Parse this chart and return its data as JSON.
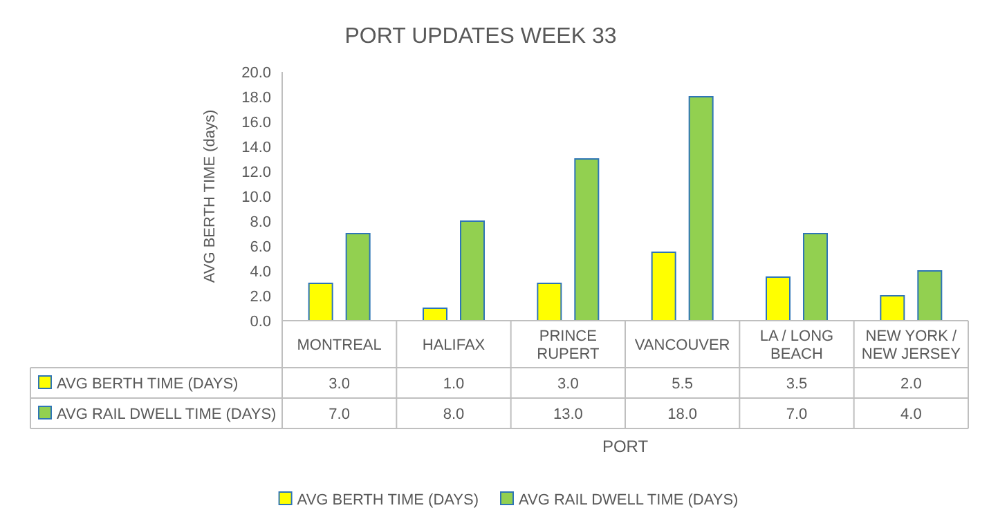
{
  "chart_data": {
    "type": "bar",
    "title": "PORT UPDATES WEEK 33",
    "xlabel": "PORT",
    "ylabel": "AVG BERTH TIME (days)",
    "categories": [
      "MONTREAL",
      "HALIFAX",
      "PRINCE RUPERT",
      "VANCOUVER",
      "LA / LONG BEACH",
      "NEW YORK / NEW JERSEY"
    ],
    "series": [
      {
        "name": "AVG BERTH TIME (DAYS)",
        "color": "#ffff00",
        "values": [
          3.0,
          1.0,
          3.0,
          5.5,
          3.5,
          2.0
        ],
        "value_labels": [
          "3.0",
          "1.0",
          "3.0",
          "5.5",
          "3.5",
          "2.0"
        ]
      },
      {
        "name": "AVG RAIL DWELL TIME (DAYS)",
        "color": "#92d050",
        "values": [
          7.0,
          8.0,
          13.0,
          18.0,
          7.0,
          4.0
        ],
        "value_labels": [
          "7.0",
          "8.0",
          "13.0",
          "18.0",
          "7.0",
          "4.0"
        ]
      }
    ],
    "ylim": [
      0,
      20
    ],
    "yticks": [
      {
        "value": 0,
        "label": "0.0"
      },
      {
        "value": 2,
        "label": "2.0"
      },
      {
        "value": 4,
        "label": "4.0"
      },
      {
        "value": 6,
        "label": "6.0"
      },
      {
        "value": 8,
        "label": "8.0"
      },
      {
        "value": 10,
        "label": "10.0"
      },
      {
        "value": 12,
        "label": "12.0"
      },
      {
        "value": 14,
        "label": "14.0"
      },
      {
        "value": 16,
        "label": "16.0"
      },
      {
        "value": 18,
        "label": "18.0"
      },
      {
        "value": 20,
        "label": "20.0"
      }
    ],
    "grid": false,
    "legend": "bottom"
  }
}
